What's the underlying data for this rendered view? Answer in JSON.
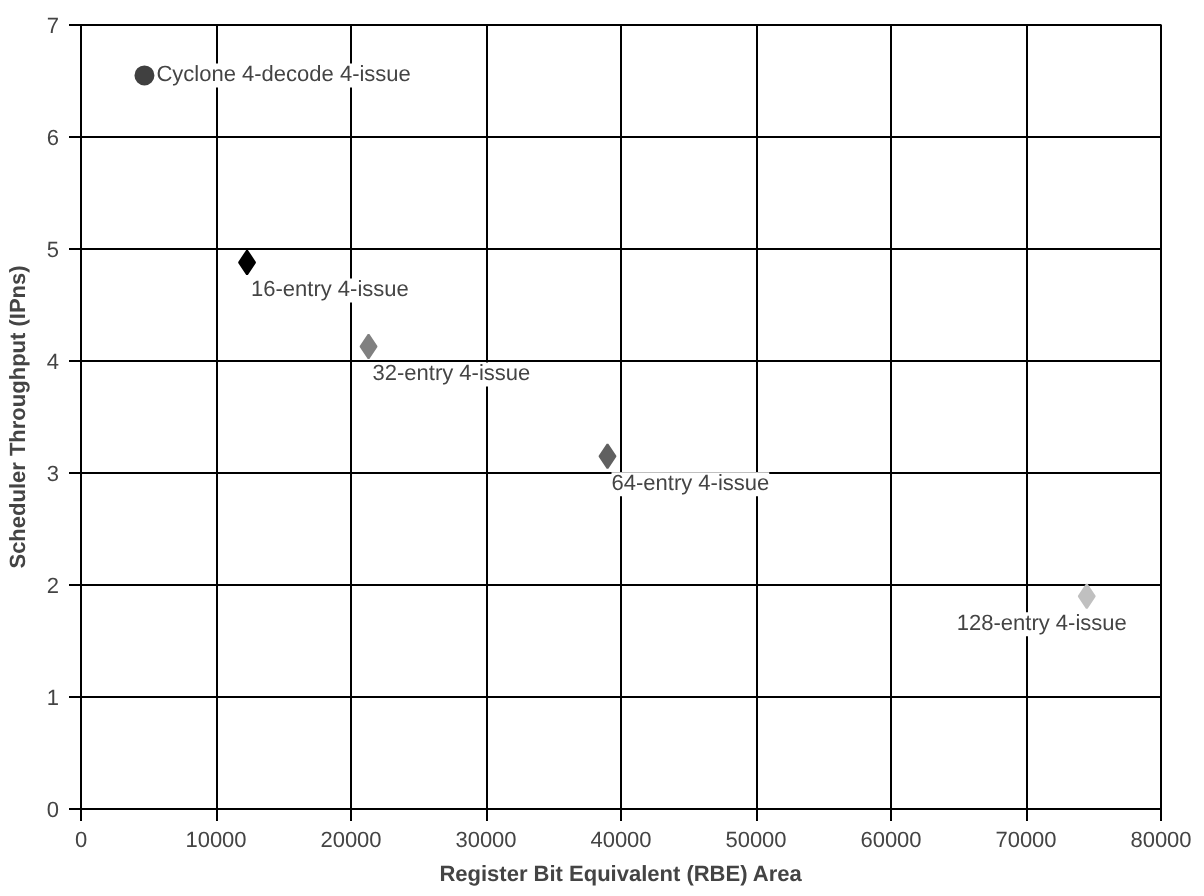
{
  "chart_data": {
    "type": "scatter",
    "xlabel": "Register Bit Equivalent (RBE) Area",
    "ylabel": "Scheduler Throughput (IPns)",
    "xlim": [
      0,
      80000
    ],
    "xticks": [
      0,
      10000,
      20000,
      30000,
      40000,
      50000,
      60000,
      70000,
      80000
    ],
    "ylim": [
      0,
      7
    ],
    "yticks": [
      0,
      1,
      2,
      3,
      4,
      5,
      6,
      7
    ],
    "grid": true,
    "series": [
      {
        "name": "Cyclone 4-decode 4-issue",
        "color": "#404040",
        "marker": "circle",
        "x": [
          4700
        ],
        "values": [
          6.55
        ]
      },
      {
        "name": "16-entry 4-issue",
        "color": "#000000",
        "marker": "diamond",
        "x": [
          12300
        ],
        "values": [
          4.88
        ]
      },
      {
        "name": "32-entry 4-issue",
        "color": "#808080",
        "marker": "diamond",
        "x": [
          21300
        ],
        "values": [
          4.13
        ]
      },
      {
        "name": "64-entry 4-issue",
        "color": "#606060",
        "marker": "diamond",
        "x": [
          39000
        ],
        "values": [
          3.15
        ]
      },
      {
        "name": "128-entry 4-issue",
        "color": "#c0c0c0",
        "marker": "diamond",
        "x": [
          74500
        ],
        "values": [
          1.9
        ]
      }
    ]
  }
}
